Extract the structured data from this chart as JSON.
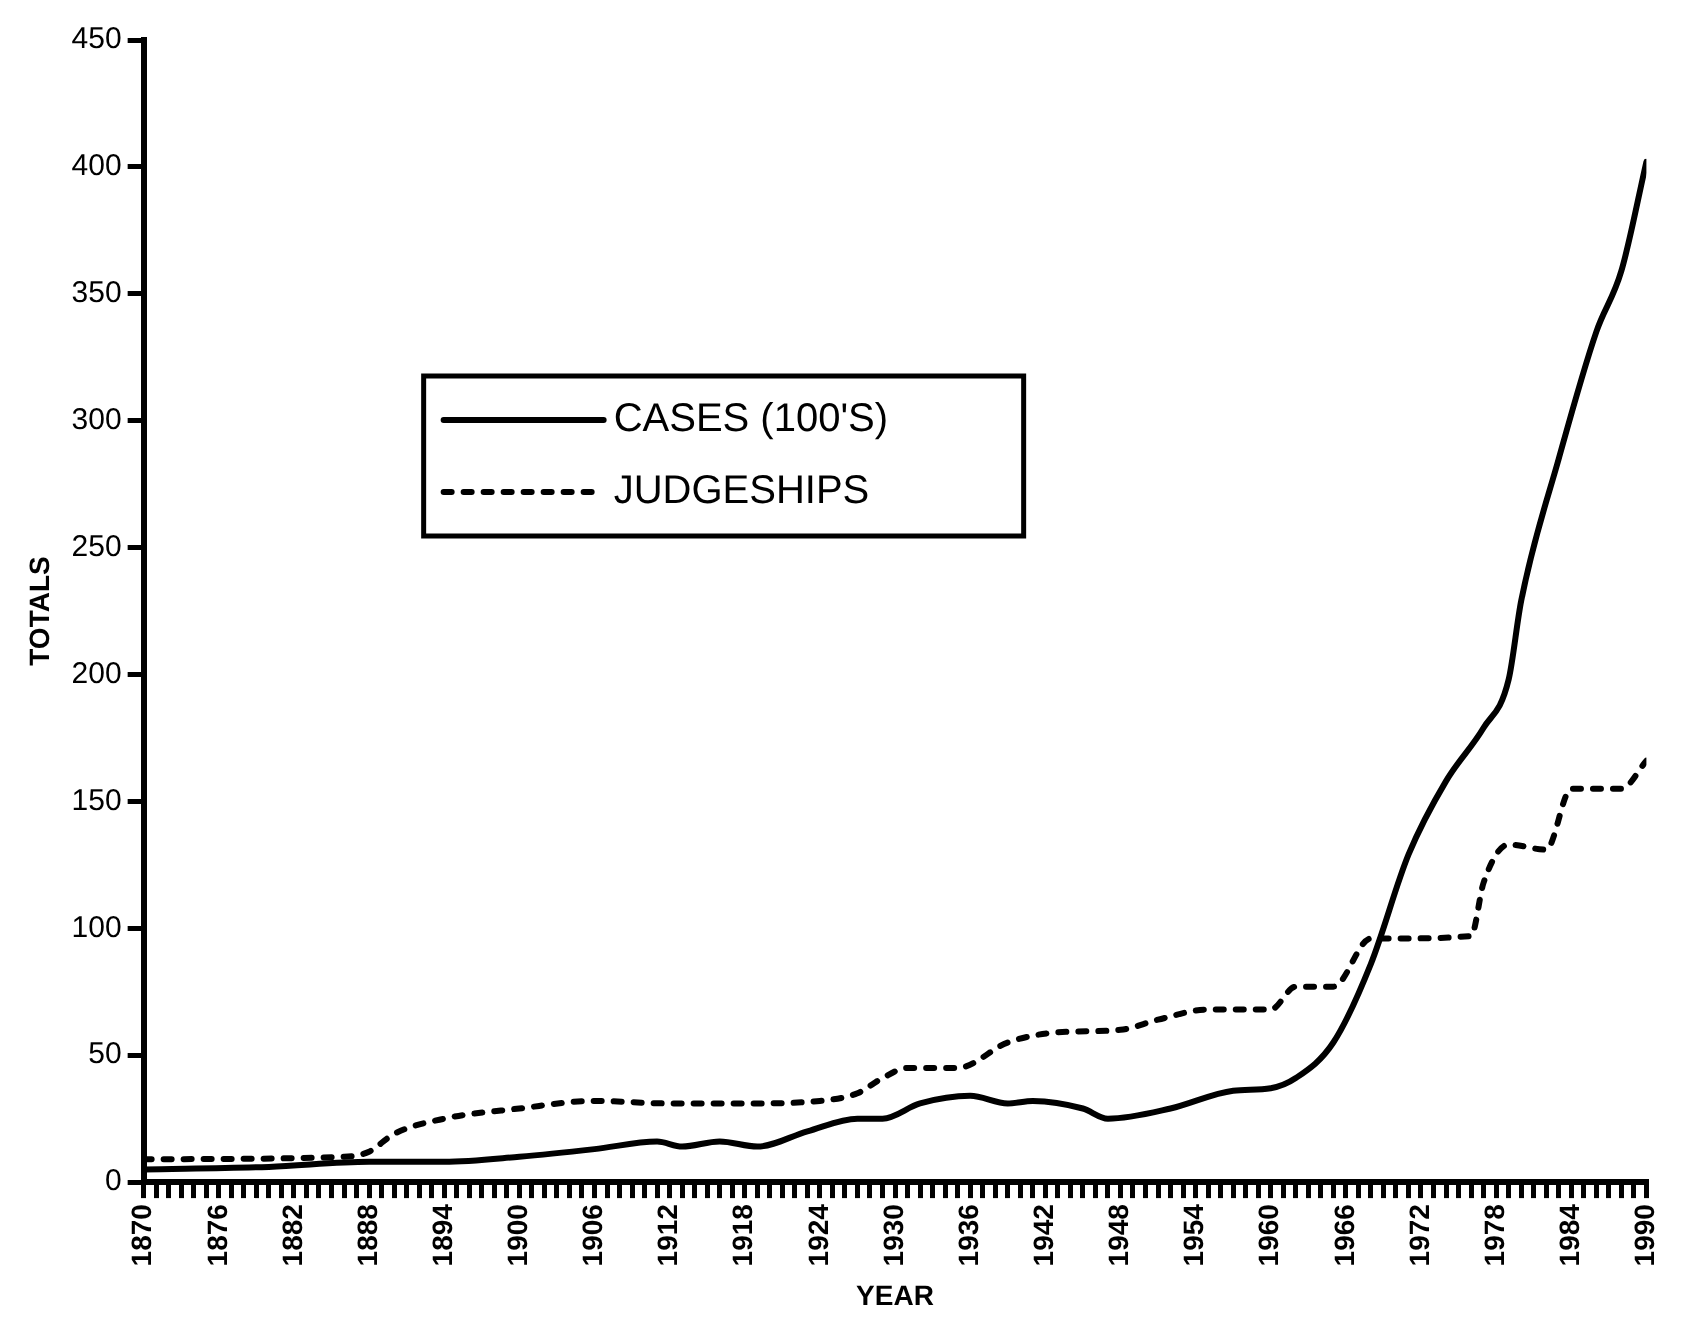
{
  "chart_data": {
    "type": "line",
    "xlabel": "YEAR",
    "ylabel": "TOTALS",
    "xlim": [
      1870,
      1990
    ],
    "ylim": [
      0,
      450
    ],
    "yticks": [
      0,
      50,
      100,
      150,
      200,
      250,
      300,
      350,
      400,
      450
    ],
    "xticks": [
      1870,
      {
        "value": 1871,
        "label": null
      },
      {
        "value": 1872,
        "label": null
      },
      {
        "value": 1873,
        "label": null
      },
      {
        "value": 1874,
        "label": null
      },
      {
        "value": 1875,
        "label": null
      },
      1876,
      {
        "value": 1877,
        "label": null
      },
      {
        "value": 1878,
        "label": null
      },
      {
        "value": 1879,
        "label": null
      },
      {
        "value": 1880,
        "label": null
      },
      {
        "value": 1881,
        "label": null
      },
      1882,
      {
        "value": 1883,
        "label": null
      },
      {
        "value": 1884,
        "label": null
      },
      {
        "value": 1885,
        "label": null
      },
      {
        "value": 1886,
        "label": null
      },
      {
        "value": 1887,
        "label": null
      },
      1888,
      {
        "value": 1889,
        "label": null
      },
      {
        "value": 1890,
        "label": null
      },
      {
        "value": 1891,
        "label": null
      },
      {
        "value": 1892,
        "label": null
      },
      {
        "value": 1893,
        "label": null
      },
      1894,
      {
        "value": 1895,
        "label": null
      },
      {
        "value": 1896,
        "label": null
      },
      {
        "value": 1897,
        "label": null
      },
      {
        "value": 1898,
        "label": null
      },
      {
        "value": 1899,
        "label": null
      },
      1900,
      {
        "value": 1901,
        "label": null
      },
      {
        "value": 1902,
        "label": null
      },
      {
        "value": 1903,
        "label": null
      },
      {
        "value": 1904,
        "label": null
      },
      {
        "value": 1905,
        "label": null
      },
      1906,
      {
        "value": 1907,
        "label": null
      },
      {
        "value": 1908,
        "label": null
      },
      {
        "value": 1909,
        "label": null
      },
      {
        "value": 1910,
        "label": null
      },
      {
        "value": 1911,
        "label": null
      },
      1912,
      {
        "value": 1913,
        "label": null
      },
      {
        "value": 1914,
        "label": null
      },
      {
        "value": 1915,
        "label": null
      },
      {
        "value": 1916,
        "label": null
      },
      {
        "value": 1917,
        "label": null
      },
      1918,
      {
        "value": 1919,
        "label": null
      },
      {
        "value": 1920,
        "label": null
      },
      {
        "value": 1921,
        "label": null
      },
      {
        "value": 1922,
        "label": null
      },
      {
        "value": 1923,
        "label": null
      },
      1924,
      {
        "value": 1925,
        "label": null
      },
      {
        "value": 1926,
        "label": null
      },
      {
        "value": 1927,
        "label": null
      },
      {
        "value": 1928,
        "label": null
      },
      {
        "value": 1929,
        "label": null
      },
      1930,
      {
        "value": 1931,
        "label": null
      },
      {
        "value": 1932,
        "label": null
      },
      {
        "value": 1933,
        "label": null
      },
      {
        "value": 1934,
        "label": null
      },
      {
        "value": 1935,
        "label": null
      },
      1936,
      {
        "value": 1937,
        "label": null
      },
      {
        "value": 1938,
        "label": null
      },
      {
        "value": 1939,
        "label": null
      },
      {
        "value": 1940,
        "label": null
      },
      {
        "value": 1941,
        "label": null
      },
      1942,
      {
        "value": 1943,
        "label": null
      },
      {
        "value": 1944,
        "label": null
      },
      {
        "value": 1945,
        "label": null
      },
      {
        "value": 1946,
        "label": null
      },
      {
        "value": 1947,
        "label": null
      },
      1948,
      {
        "value": 1949,
        "label": null
      },
      {
        "value": 1950,
        "label": null
      },
      {
        "value": 1951,
        "label": null
      },
      {
        "value": 1952,
        "label": null
      },
      {
        "value": 1953,
        "label": null
      },
      1954,
      {
        "value": 1955,
        "label": null
      },
      {
        "value": 1956,
        "label": null
      },
      {
        "value": 1957,
        "label": null
      },
      {
        "value": 1958,
        "label": null
      },
      {
        "value": 1959,
        "label": null
      },
      1960,
      {
        "value": 1961,
        "label": null
      },
      {
        "value": 1962,
        "label": null
      },
      {
        "value": 1963,
        "label": null
      },
      {
        "value": 1964,
        "label": null
      },
      {
        "value": 1965,
        "label": null
      },
      1966,
      {
        "value": 1967,
        "label": null
      },
      {
        "value": 1968,
        "label": null
      },
      {
        "value": 1969,
        "label": null
      },
      {
        "value": 1970,
        "label": null
      },
      {
        "value": 1971,
        "label": null
      },
      1972,
      {
        "value": 1973,
        "label": null
      },
      {
        "value": 1974,
        "label": null
      },
      {
        "value": 1975,
        "label": null
      },
      {
        "value": 1976,
        "label": null
      },
      {
        "value": 1977,
        "label": null
      },
      1978,
      {
        "value": 1979,
        "label": null
      },
      {
        "value": 1980,
        "label": null
      },
      {
        "value": 1981,
        "label": null
      },
      {
        "value": 1982,
        "label": null
      },
      {
        "value": 1983,
        "label": null
      },
      1984,
      {
        "value": 1985,
        "label": null
      },
      {
        "value": 1986,
        "label": null
      },
      {
        "value": 1987,
        "label": null
      },
      {
        "value": 1988,
        "label": null
      },
      {
        "value": 1989,
        "label": null
      },
      1990
    ],
    "grid": false,
    "legend": "top left",
    "marker": "none",
    "series": [
      {
        "name": "CASES (100'S)",
        "color": "#000000",
        "line_style": "solid",
        "x": [
          1870,
          1880,
          1888,
          1894,
          1900,
          1906,
          1911,
          1913,
          1916,
          1919,
          1923,
          1927,
          1929,
          1932,
          1936,
          1939,
          1941,
          1945,
          1947,
          1952,
          1957,
          1960,
          1962,
          1965,
          1968,
          1971,
          1974,
          1977,
          1979,
          1980,
          1983,
          1986,
          1988,
          1990
        ],
        "values": [
          5,
          6,
          8,
          8,
          10,
          13,
          16,
          14,
          16,
          14,
          20,
          25,
          25,
          31,
          34,
          31,
          32,
          29,
          25,
          29,
          36,
          37,
          41,
          55,
          86,
          129,
          158,
          179,
          198,
          229,
          285,
          335,
          359,
          402
        ]
      },
      {
        "name": "JUDGESHIPS",
        "color": "#000000",
        "line_style": "dotted",
        "x": [
          1870,
          1886,
          1888,
          1890,
          1894,
          1900,
          1906,
          1912,
          1918,
          1924,
          1927,
          1929,
          1931,
          1935,
          1939,
          1943,
          1948,
          1951,
          1955,
          1960,
          1962,
          1965,
          1968,
          1970,
          1976,
          1977,
          1979,
          1982,
          1984,
          1988,
          1990
        ],
        "values": [
          9,
          10,
          12,
          19,
          25,
          29,
          32,
          31,
          31,
          32,
          35,
          41,
          45,
          45,
          55,
          59,
          60,
          64,
          68,
          68,
          77,
          77,
          96,
          96,
          97,
          118,
          133,
          131,
          155,
          155,
          166
        ]
      }
    ]
  }
}
